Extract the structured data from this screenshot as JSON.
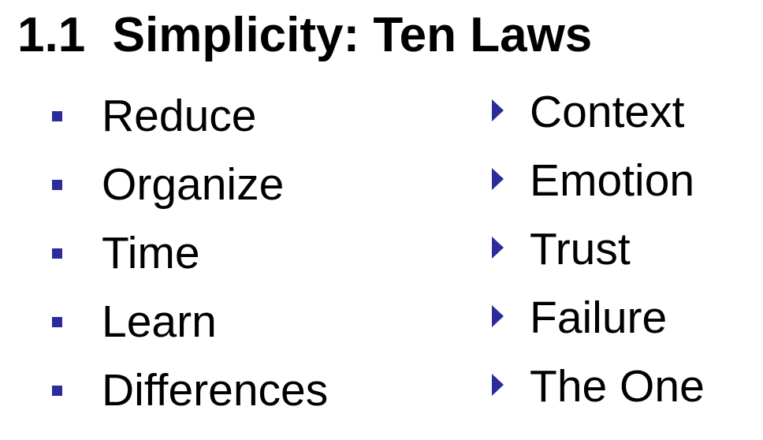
{
  "title": "1.1  Simplicity: Ten Laws",
  "bullet_color": "#2b2b9b",
  "left_column": {
    "bullet_icon": "square-bullet-icon",
    "items": [
      {
        "label": "Reduce"
      },
      {
        "label": "Organize"
      },
      {
        "label": "Time"
      },
      {
        "label": "Learn"
      },
      {
        "label": "Differences"
      }
    ]
  },
  "right_column": {
    "bullet_icon": "triangle-bullet-icon",
    "items": [
      {
        "label": "Context"
      },
      {
        "label": "Emotion"
      },
      {
        "label": "Trust"
      },
      {
        "label": "Failure"
      },
      {
        "label": "The One"
      }
    ]
  }
}
